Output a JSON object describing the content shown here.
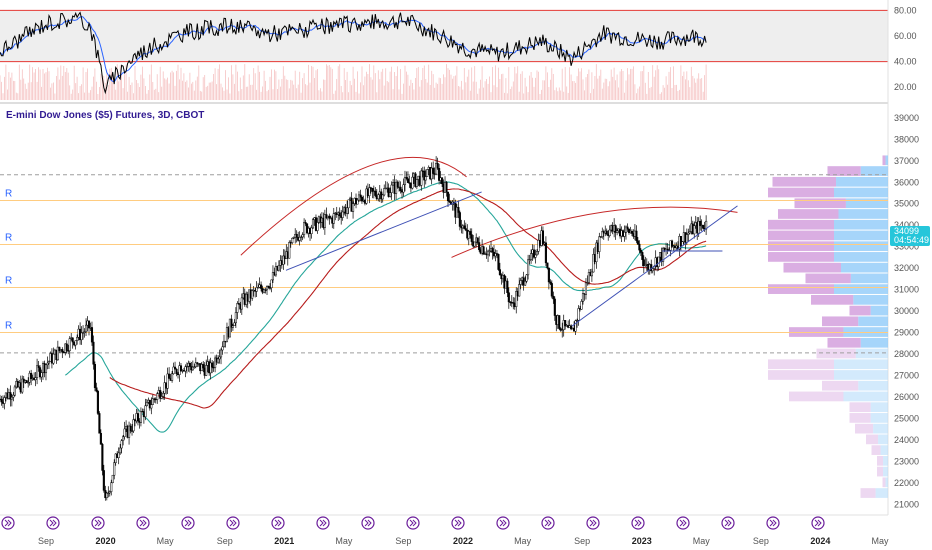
{
  "title": "E-mini Dow Jones ($5) Futures, 3D, CBOT",
  "price_tag": {
    "value": "34099",
    "countdown": "04:54:49",
    "color": "#26c6da"
  },
  "rsi_axis": [
    "80.00",
    "60.00",
    "40.00",
    "20.00"
  ],
  "price_axis": [
    "39000",
    "38000",
    "37000",
    "36000",
    "35000",
    "34000",
    "33000",
    "32000",
    "31000",
    "30000",
    "29000",
    "28000",
    "27000",
    "26000",
    "25000",
    "24000",
    "23000",
    "22000",
    "21000"
  ],
  "x_axis": [
    {
      "label": "Sep",
      "bold": false
    },
    {
      "label": "2020",
      "bold": true
    },
    {
      "label": "May",
      "bold": false
    },
    {
      "label": "Sep",
      "bold": false
    },
    {
      "label": "2021",
      "bold": true
    },
    {
      "label": "May",
      "bold": false
    },
    {
      "label": "Sep",
      "bold": false
    },
    {
      "label": "2022",
      "bold": true
    },
    {
      "label": "May",
      "bold": false
    },
    {
      "label": "Sep",
      "bold": false
    },
    {
      "label": "2023",
      "bold": true
    },
    {
      "label": "May",
      "bold": false
    },
    {
      "label": "Sep",
      "bold": false
    },
    {
      "label": "2024",
      "bold": true
    },
    {
      "label": "May",
      "bold": false
    }
  ],
  "r_labels": [
    "R",
    "R",
    "R",
    "R"
  ],
  "colors": {
    "up": "#ffffff",
    "down": "#000000",
    "candle_outline": "#000000",
    "rsi_line": "#000000",
    "rsi_ma": "#2962ff",
    "rsi_band": "#e0e0e0",
    "rsi_bound": "#e53935",
    "ma_green": "#26a69a",
    "ma_red": "#b71c1c",
    "trend_blue": "#3f51b5",
    "arc_red": "#c62828",
    "profile_purple": "#ce93d8",
    "profile_blue": "#90caf9"
  },
  "chart_data": {
    "type": "candlestick",
    "title": "E-mini Dow Jones ($5) Futures, 3D, CBOT",
    "interval": "3D",
    "x_range": [
      "2019-08",
      "2024-05"
    ],
    "ylim": [
      20500,
      39600
    ],
    "last_price": 34099,
    "horizontal_levels": [
      36350,
      35150,
      33100,
      31100,
      29000,
      28050
    ],
    "close_path": [
      {
        "date": "2019-08",
        "close": 25900
      },
      {
        "date": "2019-10",
        "close": 26800
      },
      {
        "date": "2019-12",
        "close": 28200
      },
      {
        "date": "2020-02",
        "close": 29300
      },
      {
        "date": "2020-03",
        "close": 21000
      },
      {
        "date": "2020-04",
        "close": 24000
      },
      {
        "date": "2020-06",
        "close": 25700
      },
      {
        "date": "2020-08",
        "close": 27500
      },
      {
        "date": "2020-10",
        "close": 27300
      },
      {
        "date": "2020-12",
        "close": 30400
      },
      {
        "date": "2021-02",
        "close": 31400
      },
      {
        "date": "2021-04",
        "close": 33800
      },
      {
        "date": "2021-06",
        "close": 34300
      },
      {
        "date": "2021-08",
        "close": 35300
      },
      {
        "date": "2021-10",
        "close": 35700
      },
      {
        "date": "2021-12",
        "close": 36200
      },
      {
        "date": "2022-01",
        "close": 36600
      },
      {
        "date": "2022-03",
        "close": 33500
      },
      {
        "date": "2022-05",
        "close": 32500
      },
      {
        "date": "2022-06",
        "close": 30200
      },
      {
        "date": "2022-08",
        "close": 33600
      },
      {
        "date": "2022-09",
        "close": 29500
      },
      {
        "date": "2022-10",
        "close": 28900
      },
      {
        "date": "2022-12",
        "close": 33800
      },
      {
        "date": "2023-02",
        "close": 33700
      },
      {
        "date": "2023-03",
        "close": 32000
      },
      {
        "date": "2023-05",
        "close": 33200
      },
      {
        "date": "2023-06",
        "close": 33800
      },
      {
        "date": "2023-07",
        "close": 34099
      }
    ],
    "rsi": {
      "ylim": [
        10,
        85
      ],
      "upper_band": 80,
      "lower_band": 40,
      "path": [
        {
          "date": "2019-08",
          "value": 48
        },
        {
          "date": "2019-11",
          "value": 70
        },
        {
          "date": "2020-01",
          "value": 74
        },
        {
          "date": "2020-02",
          "value": 68
        },
        {
          "date": "2020-03",
          "value": 20
        },
        {
          "date": "2020-05",
          "value": 45
        },
        {
          "date": "2020-08",
          "value": 62
        },
        {
          "date": "2020-11",
          "value": 68
        },
        {
          "date": "2021-02",
          "value": 62
        },
        {
          "date": "2021-05",
          "value": 66
        },
        {
          "date": "2021-08",
          "value": 70
        },
        {
          "date": "2021-11",
          "value": 72
        },
        {
          "date": "2022-01",
          "value": 62
        },
        {
          "date": "2022-03",
          "value": 50
        },
        {
          "date": "2022-05",
          "value": 46
        },
        {
          "date": "2022-08",
          "value": 56
        },
        {
          "date": "2022-10",
          "value": 42
        },
        {
          "date": "2022-12",
          "value": 62
        },
        {
          "date": "2023-02",
          "value": 58
        },
        {
          "date": "2023-04",
          "value": 56
        },
        {
          "date": "2023-06",
          "value": 60
        },
        {
          "date": "2023-07",
          "value": 58
        }
      ]
    }
  }
}
